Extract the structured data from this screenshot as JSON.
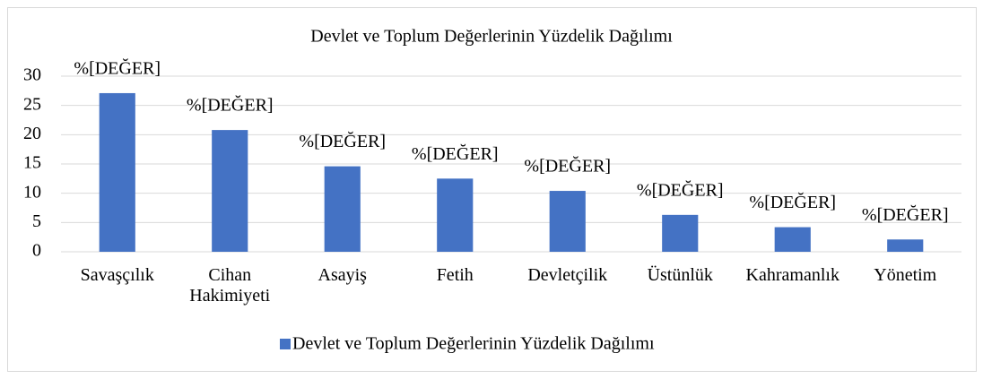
{
  "chart_data": {
    "type": "bar",
    "title": "Devlet ve Toplum Değerlerinin Yüzdelik Dağılımı",
    "categories": [
      "Savaşçılık",
      "Cihan Hakimiyeti",
      "Asayiş",
      "Fetih",
      "Devletçilik",
      "Üstünlük",
      "Kahramanlık",
      "Yönetim"
    ],
    "series": [
      {
        "name": "Devlet ve Toplum Değerlerinin Yüzdelik Dağılımı",
        "color": "#4472c4",
        "values": [
          27.1,
          20.8,
          14.6,
          12.5,
          10.4,
          6.3,
          4.2,
          2.1
        ],
        "value_labels": [
          "%[DEĞER]",
          "%[DEĞER]",
          "%[DEĞER]",
          "%[DEĞER]",
          "%[DEĞER]",
          "%[DEĞER]",
          "%[DEĞER]",
          "%[DEĞER]"
        ]
      }
    ],
    "ylim": [
      0,
      30
    ],
    "yticks": [
      0,
      5,
      10,
      15,
      20,
      25,
      30
    ],
    "grid": true,
    "legend": "bottom"
  }
}
